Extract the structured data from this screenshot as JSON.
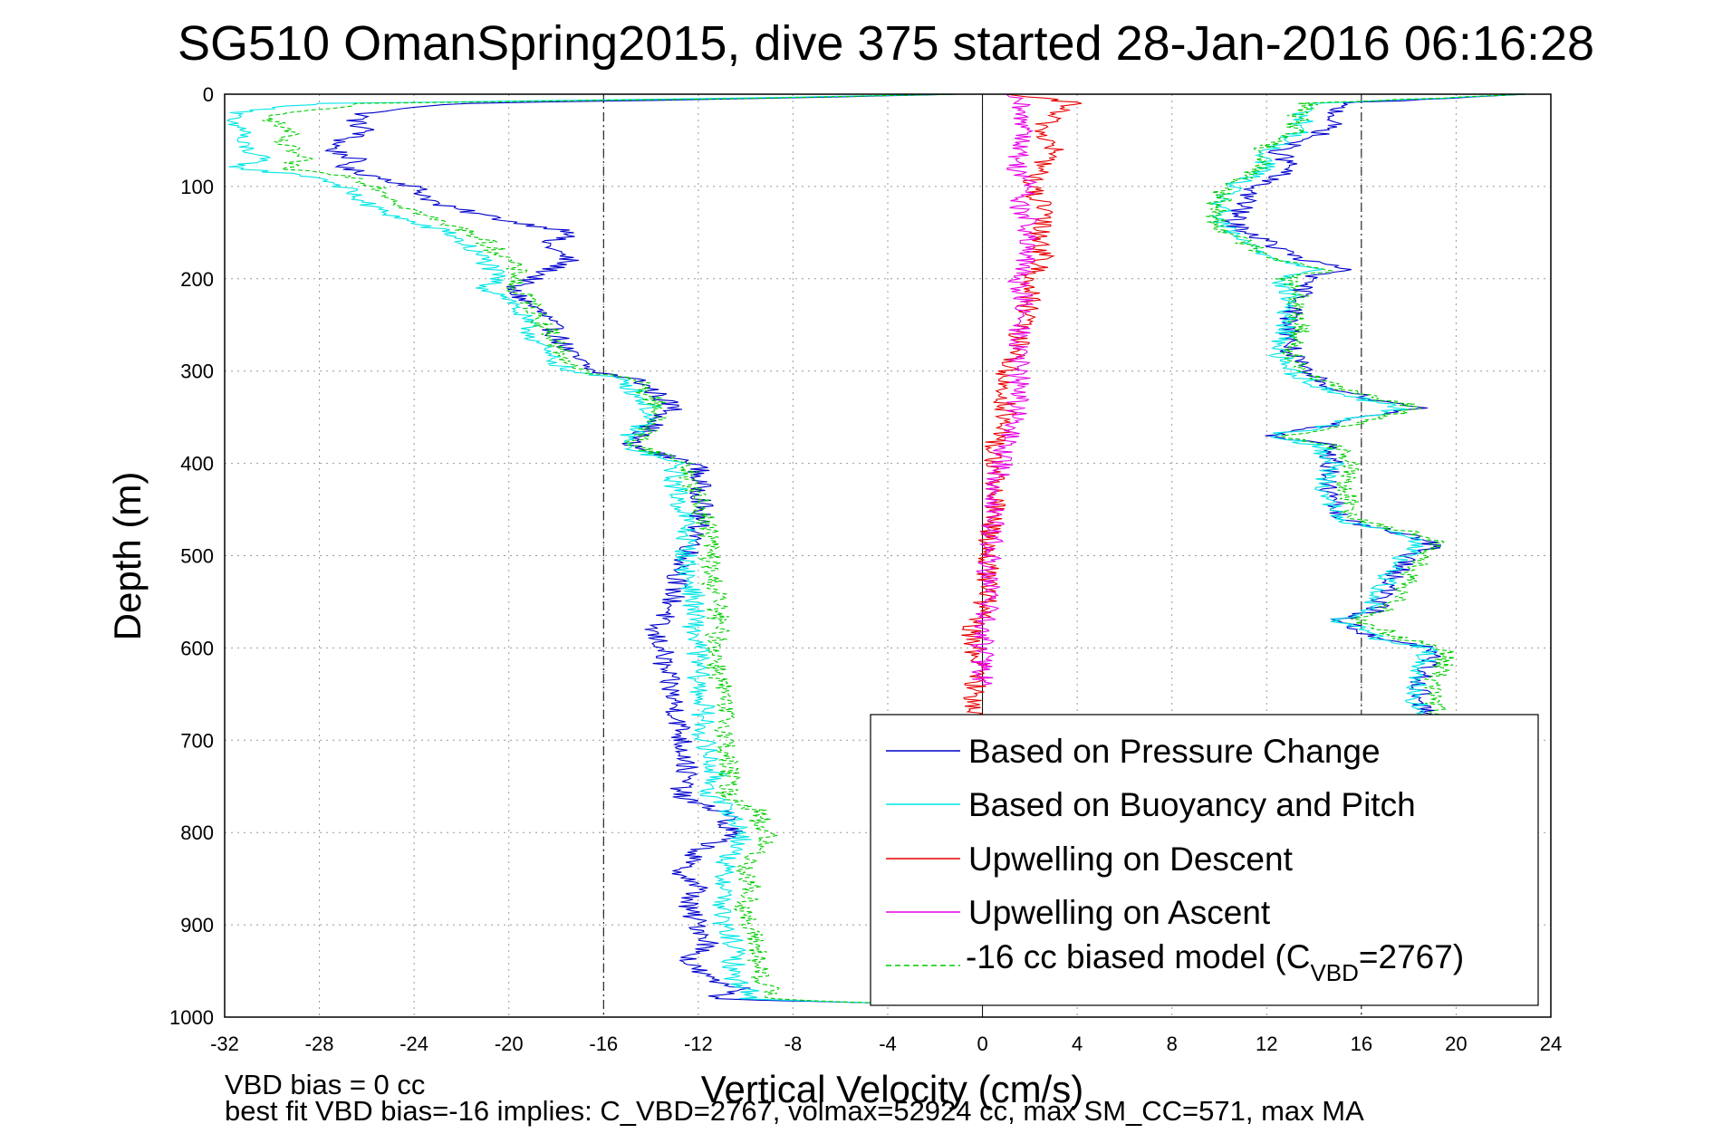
{
  "chart_data": {
    "type": "line",
    "title": "SG510 OmanSpring2015, dive 375 started 28-Jan-2016 06:16:28",
    "xlabel": "Vertical Velocity (cm/s)",
    "ylabel": "Depth (m)",
    "xlim": [
      -32,
      24
    ],
    "ylim": [
      0,
      1000
    ],
    "y_reversed": true,
    "grid": true,
    "x_ticks": [
      "-32",
      "-28",
      "-24",
      "-20",
      "-16",
      "-12",
      "-8",
      "-4",
      "0",
      "4",
      "8",
      "12",
      "16",
      "20",
      "24"
    ],
    "y_ticks": [
      "0",
      "100",
      "200",
      "300",
      "400",
      "500",
      "600",
      "700",
      "800",
      "900",
      "1000"
    ],
    "reference_lines": [
      -16,
      0,
      16
    ],
    "legend": {
      "placement": "bottom-right",
      "entries": [
        {
          "label": "Based on Pressure Change",
          "color": "#0000cc",
          "style": "solid"
        },
        {
          "label": "Based on Buoyancy and Pitch",
          "color": "#00e5e5",
          "style": "solid"
        },
        {
          "label": "Upwelling on Descent",
          "color": "#e60000",
          "style": "solid"
        },
        {
          "label": "Upwelling on Ascent",
          "color": "#e600e6",
          "style": "solid"
        },
        {
          "label_main": "-16 cc biased model (C",
          "label_sub": "VBD",
          "label_tail": "=2767)",
          "color": "#00cc00",
          "style": "dashed"
        }
      ]
    },
    "series": [
      {
        "name": "Based on Pressure Change",
        "color": "#0000cc",
        "phase": "descent",
        "depth": [
          0,
          5,
          10,
          20,
          30,
          40,
          50,
          60,
          70,
          80,
          90,
          100,
          120,
          140,
          150,
          160,
          180,
          200,
          210,
          220,
          240,
          260,
          280,
          300,
          310,
          320,
          340,
          360,
          380,
          395,
          400,
          420,
          440,
          460,
          480,
          500,
          520,
          540,
          560,
          580,
          600,
          620,
          640,
          660,
          680,
          700,
          720,
          740,
          760,
          770,
          780,
          790,
          800,
          820,
          840,
          860,
          880,
          900,
          920,
          940,
          960,
          970,
          980,
          985
        ],
        "x": [
          -1,
          -10,
          -22,
          -26,
          -26.5,
          -26,
          -27,
          -27.5,
          -26.5,
          -27,
          -25.5,
          -24,
          -23,
          -19.5,
          -17,
          -18.5,
          -17.5,
          -19,
          -20,
          -19.5,
          -18.5,
          -18,
          -17.5,
          -16.5,
          -14.5,
          -14,
          -13,
          -14,
          -15,
          -13,
          -12,
          -12,
          -11.8,
          -12,
          -12,
          -12.5,
          -12.8,
          -13,
          -13.2,
          -14,
          -13.5,
          -13.5,
          -13.2,
          -13,
          -12.8,
          -12.7,
          -12.5,
          -12.5,
          -12.8,
          -12,
          -10.5,
          -11,
          -10.5,
          -12,
          -12.8,
          -12,
          -12.5,
          -12,
          -11.5,
          -12.5,
          -11.5,
          -10,
          -11.5,
          -4
        ]
      },
      {
        "name": "Based on Buoyancy and Pitch",
        "color": "#00e5e5",
        "phase": "descent",
        "depth": [
          0,
          5,
          10,
          20,
          30,
          40,
          50,
          60,
          70,
          80,
          90,
          100,
          120,
          140,
          150,
          160,
          180,
          200,
          210,
          220,
          240,
          260,
          280,
          300,
          310,
          320,
          340,
          360,
          380,
          395,
          400,
          420,
          440,
          460,
          480,
          500,
          520,
          540,
          560,
          580,
          600,
          620,
          640,
          660,
          680,
          700,
          720,
          740,
          760,
          770,
          780,
          790,
          800,
          820,
          840,
          860,
          880,
          900,
          920,
          940,
          960,
          970,
          980,
          985
        ],
        "x": [
          -1,
          -12,
          -28,
          -31.5,
          -32,
          -31,
          -31.5,
          -31,
          -30.5,
          -31.5,
          -28,
          -27,
          -26,
          -24,
          -22.5,
          -22,
          -21,
          -20.5,
          -21,
          -20,
          -19.5,
          -19,
          -18.5,
          -17.5,
          -15,
          -14.8,
          -14,
          -14.5,
          -15.2,
          -13.5,
          -13,
          -13,
          -12.8,
          -12.5,
          -12.5,
          -12.5,
          -12.5,
          -12.2,
          -12.2,
          -12.2,
          -12,
          -12,
          -12,
          -11.8,
          -11.8,
          -11.8,
          -11.5,
          -11.3,
          -11.5,
          -11,
          -10.5,
          -10.5,
          -10,
          -10.5,
          -11,
          -10.8,
          -11,
          -11,
          -10.5,
          -10.5,
          -10.5,
          -9.8,
          -10,
          -4
        ]
      },
      {
        "name": "-16 cc biased model",
        "color": "#00cc00",
        "phase": "descent",
        "dashed": true,
        "depth": [
          0,
          5,
          10,
          20,
          30,
          40,
          50,
          60,
          70,
          80,
          90,
          100,
          120,
          140,
          150,
          160,
          180,
          200,
          210,
          220,
          240,
          260,
          280,
          300,
          310,
          320,
          340,
          360,
          380,
          395,
          400,
          420,
          440,
          460,
          480,
          500,
          520,
          540,
          560,
          580,
          600,
          620,
          640,
          660,
          680,
          700,
          720,
          740,
          760,
          770,
          780,
          790,
          800,
          820,
          840,
          860,
          880,
          900,
          920,
          940,
          960,
          970,
          980,
          985
        ],
        "x": [
          -1,
          -11,
          -26,
          -29.5,
          -30,
          -29.2,
          -29.8,
          -29.2,
          -28.8,
          -29.6,
          -26.5,
          -25.5,
          -24.5,
          -22.8,
          -21.5,
          -21,
          -20,
          -19.5,
          -20,
          -19.2,
          -18.8,
          -18.2,
          -17.8,
          -17,
          -14.5,
          -14.3,
          -13.6,
          -14,
          -14.7,
          -13,
          -12.5,
          -12.3,
          -12,
          -11.7,
          -11.5,
          -11.5,
          -11.5,
          -11.2,
          -11.2,
          -11.2,
          -11.2,
          -11.2,
          -11,
          -11,
          -10.8,
          -10.8,
          -10.8,
          -10.7,
          -10.8,
          -10,
          -9.3,
          -9.5,
          -9,
          -9.5,
          -10,
          -9.8,
          -10,
          -10,
          -9.5,
          -9.5,
          -9.5,
          -8.8,
          -9,
          -4
        ]
      },
      {
        "name": "Based on Pressure Change",
        "color": "#0000cc",
        "phase": "ascent",
        "depth": [
          0,
          10,
          20,
          40,
          60,
          80,
          100,
          120,
          140,
          160,
          180,
          190,
          200,
          220,
          240,
          260,
          280,
          300,
          320,
          330,
          340,
          350,
          360,
          370,
          380,
          400,
          420,
          440,
          460,
          480,
          490,
          500,
          520,
          540,
          560,
          570,
          580,
          590,
          600,
          620,
          640,
          660,
          680
        ],
        "x": [
          23,
          15,
          15,
          14.5,
          12.5,
          13,
          11.5,
          11,
          10.5,
          12,
          13.5,
          15.5,
          13.5,
          13.5,
          13,
          13,
          13,
          13.5,
          15,
          16.5,
          18.5,
          16,
          14.5,
          12,
          14.5,
          14.8,
          14.5,
          14.8,
          15,
          18.5,
          19,
          18,
          17.5,
          17,
          16.5,
          15,
          16,
          16.5,
          19,
          18.8,
          18.5,
          18.5,
          18.8
        ]
      },
      {
        "name": "Based on Buoyancy and Pitch",
        "color": "#00e5e5",
        "phase": "ascent",
        "depth": [
          0,
          10,
          20,
          40,
          60,
          80,
          100,
          120,
          140,
          160,
          180,
          190,
          200,
          220,
          240,
          260,
          280,
          300,
          320,
          330,
          340,
          350,
          360,
          370,
          380,
          400,
          420,
          440,
          460,
          480,
          490,
          500,
          520,
          540,
          560,
          570,
          580,
          590,
          600,
          620,
          640,
          660,
          680
        ],
        "x": [
          23,
          14,
          13.5,
          13.5,
          12,
          12,
          10.5,
          10,
          10,
          11,
          12.5,
          14.5,
          12.5,
          13,
          12.8,
          12.8,
          12.5,
          13,
          14.5,
          16,
          17.8,
          16,
          14.5,
          12,
          14.2,
          14.8,
          14.5,
          14.6,
          15,
          18,
          18.6,
          17.8,
          17.2,
          16.8,
          16.3,
          15,
          16.2,
          16.8,
          18.8,
          18.6,
          18.3,
          18.3,
          18.5
        ]
      },
      {
        "name": "-16 cc biased model",
        "color": "#00cc00",
        "phase": "ascent",
        "dashed": true,
        "depth": [
          0,
          10,
          20,
          40,
          60,
          80,
          100,
          120,
          140,
          160,
          180,
          190,
          200,
          220,
          240,
          260,
          280,
          300,
          320,
          330,
          340,
          350,
          360,
          370,
          380,
          400,
          420,
          440,
          460,
          480,
          490,
          500,
          520,
          540,
          560,
          570,
          580,
          590,
          600,
          620,
          640,
          660,
          680
        ],
        "x": [
          23,
          13.8,
          13.3,
          13.3,
          11.8,
          11.8,
          10.3,
          9.9,
          9.9,
          11,
          12.6,
          14.8,
          12.8,
          13.4,
          13.3,
          13.4,
          13.1,
          13.6,
          15.1,
          16.7,
          18.6,
          16.7,
          15.2,
          12.7,
          14.9,
          15.6,
          15.3,
          15.4,
          15.8,
          18.8,
          19.4,
          18.6,
          18,
          17.6,
          17.1,
          15.8,
          17,
          17.6,
          19.6,
          19.4,
          19.1,
          19.1,
          19.3
        ]
      },
      {
        "name": "Upwelling on Descent",
        "color": "#e60000",
        "depth": [
          0,
          10,
          20,
          40,
          60,
          80,
          100,
          120,
          140,
          160,
          180,
          200,
          220,
          240,
          260,
          280,
          300,
          320,
          340,
          360,
          380,
          400,
          420,
          440,
          460,
          480,
          500,
          520,
          540,
          560,
          580,
          600,
          620,
          640,
          660,
          680,
          700
        ],
        "x": [
          1,
          4,
          3,
          2.5,
          3,
          2.5,
          2,
          2.5,
          2.5,
          2.5,
          2.5,
          2,
          2,
          1.8,
          1.5,
          1.5,
          1,
          0.8,
          1,
          0.8,
          0.5,
          0.5,
          0.5,
          0.5,
          0.5,
          0.3,
          0.2,
          0.2,
          0.2,
          0,
          -0.5,
          -0.3,
          -0.2,
          -0.3,
          -0.3,
          -0.4,
          -0.5
        ]
      },
      {
        "name": "Upwelling on Ascent",
        "color": "#e600e6",
        "depth": [
          0,
          10,
          20,
          40,
          60,
          80,
          100,
          120,
          140,
          160,
          180,
          200,
          220,
          240,
          260,
          280,
          300,
          320,
          340,
          360,
          380,
          400,
          420,
          440,
          460,
          480,
          500,
          520,
          540,
          560,
          580,
          600,
          620,
          640
        ],
        "x": [
          1,
          1.5,
          1.5,
          2,
          1.5,
          1.5,
          2,
          1.5,
          2,
          1.8,
          1.8,
          1.5,
          1.8,
          1.5,
          1.6,
          1.5,
          1.5,
          1.6,
          1.5,
          1.2,
          1,
          0.8,
          0.6,
          0.5,
          0.5,
          0.4,
          0.3,
          0.2,
          0.3,
          0.2,
          0,
          0,
          0,
          0
        ]
      }
    ]
  },
  "footer": {
    "line1": "VBD bias = 0 cc",
    "line2": "best fit VBD bias=-16 implies: C_VBD=2767, volmax=52924 cc, max SM_CC=571, max MA"
  }
}
